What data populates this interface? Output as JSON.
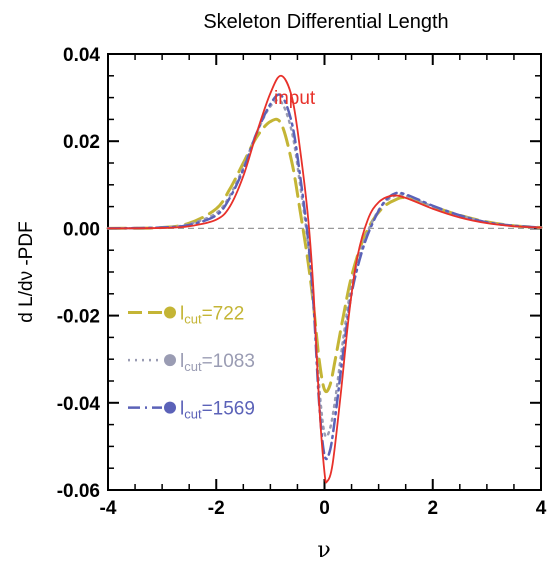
{
  "chart_data": {
    "type": "line",
    "title": "Skeleton Differential Length",
    "xlabel": "ν",
    "ylabel": "d L/dν -PDF",
    "xlim": [
      -4,
      4
    ],
    "ylim": [
      -0.06,
      0.04
    ],
    "xticks": [
      -4,
      -2,
      0,
      2,
      4
    ],
    "xtick_labels": [
      "-4",
      "-2",
      "0",
      "2",
      "4"
    ],
    "yticks": [
      -0.06,
      -0.04,
      -0.02,
      0.0,
      0.02,
      0.04
    ],
    "ytick_labels": [
      "-0.06",
      "-0.04",
      "-0.02",
      "0.00",
      "0.02",
      "0.04"
    ],
    "grid": false,
    "legend_position": "left",
    "annotations": [
      {
        "text": "input",
        "color": "#e8312a"
      }
    ],
    "reference_line": {
      "y": 0.0,
      "style": "dashed",
      "color": "#999999"
    },
    "series": [
      {
        "name": "input",
        "color": "#e8312a",
        "style": "solid",
        "x": [
          -4,
          -3,
          -2.5,
          -2,
          -1.75,
          -1.5,
          -1.25,
          -1,
          -0.8,
          -0.6,
          -0.45,
          -0.3,
          -0.2,
          -0.1,
          0,
          0.05,
          0.15,
          0.3,
          0.45,
          0.6,
          0.8,
          1,
          1.25,
          1.5,
          2,
          2.5,
          3,
          3.5,
          4
        ],
        "y": [
          0,
          0.0001,
          0.0005,
          0.002,
          0.005,
          0.012,
          0.022,
          0.031,
          0.035,
          0.03,
          0.018,
          0.002,
          -0.015,
          -0.04,
          -0.056,
          -0.058,
          -0.054,
          -0.038,
          -0.02,
          -0.007,
          0.002,
          0.006,
          0.0075,
          0.007,
          0.0045,
          0.0025,
          0.0012,
          0.0005,
          0.0002
        ]
      },
      {
        "name": "l_cut=722",
        "label": "l",
        "sub": "cut",
        "value_text": "=722",
        "color": "#c4b535",
        "style": "dashed",
        "x": [
          -4,
          -3,
          -2.5,
          -2,
          -1.75,
          -1.5,
          -1.25,
          -1,
          -0.8,
          -0.6,
          -0.45,
          -0.3,
          -0.2,
          -0.1,
          0,
          0.1,
          0.2,
          0.35,
          0.5,
          0.7,
          0.9,
          1.1,
          1.3,
          1.5,
          2,
          2.5,
          3,
          3.5,
          4
        ],
        "y": [
          0,
          0.0002,
          0.0012,
          0.0045,
          0.009,
          0.015,
          0.021,
          0.0245,
          0.024,
          0.015,
          0.004,
          -0.008,
          -0.018,
          -0.03,
          -0.037,
          -0.036,
          -0.03,
          -0.02,
          -0.011,
          -0.003,
          0.002,
          0.005,
          0.0065,
          0.007,
          0.005,
          0.003,
          0.0015,
          0.0006,
          0.0002
        ]
      },
      {
        "name": "l_cut=1083",
        "label": "l",
        "sub": "cut",
        "value_text": "=1083",
        "color": "#9a9cb3",
        "style": "dotted",
        "x": [
          -4,
          -3,
          -2.5,
          -2,
          -1.75,
          -1.5,
          -1.25,
          -1,
          -0.8,
          -0.6,
          -0.45,
          -0.3,
          -0.2,
          -0.1,
          0,
          0.1,
          0.2,
          0.35,
          0.5,
          0.7,
          0.9,
          1.1,
          1.3,
          1.5,
          2,
          2.5,
          3,
          3.5,
          4
        ],
        "y": [
          0,
          0.0002,
          0.001,
          0.0035,
          0.0075,
          0.014,
          0.022,
          0.028,
          0.029,
          0.022,
          0.01,
          -0.004,
          -0.018,
          -0.036,
          -0.047,
          -0.046,
          -0.039,
          -0.025,
          -0.013,
          -0.004,
          0.002,
          0.0058,
          0.0075,
          0.0075,
          0.005,
          0.003,
          0.0014,
          0.0006,
          0.0002
        ]
      },
      {
        "name": "l_cut=1569",
        "label": "l",
        "sub": "cut",
        "value_text": "=1569",
        "color": "#5b62b8",
        "style": "dashdot",
        "x": [
          -4,
          -3,
          -2.5,
          -2,
          -1.75,
          -1.5,
          -1.25,
          -1,
          -0.8,
          -0.6,
          -0.45,
          -0.3,
          -0.2,
          -0.1,
          0,
          0.1,
          0.2,
          0.35,
          0.5,
          0.7,
          0.9,
          1.1,
          1.3,
          1.5,
          2,
          2.5,
          3,
          3.5,
          4
        ],
        "y": [
          0,
          0.0002,
          0.0008,
          0.003,
          0.007,
          0.0135,
          0.022,
          0.0285,
          0.0305,
          0.024,
          0.012,
          -0.003,
          -0.018,
          -0.04,
          -0.052,
          -0.051,
          -0.043,
          -0.028,
          -0.015,
          -0.005,
          0.0015,
          0.006,
          0.008,
          0.0078,
          0.0052,
          0.003,
          0.0014,
          0.0006,
          0.0002
        ]
      }
    ]
  }
}
